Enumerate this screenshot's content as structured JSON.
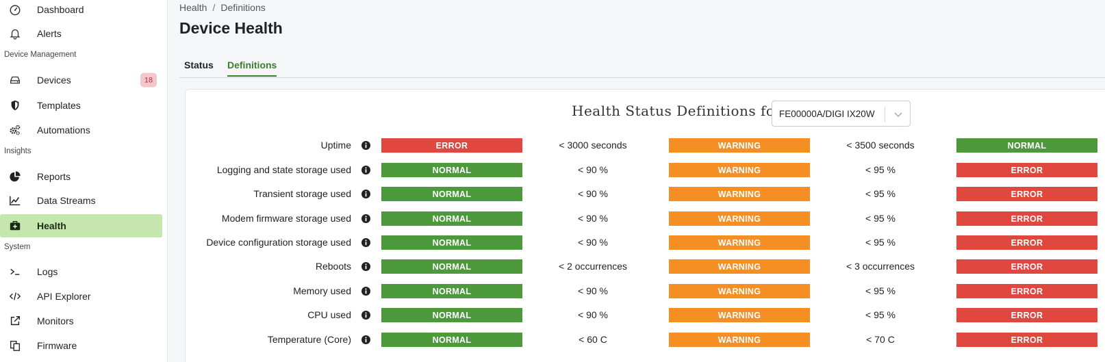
{
  "sidebar": {
    "items": [
      {
        "label": "Dashboard",
        "icon": "gauge-icon"
      },
      {
        "label": "Alerts",
        "icon": "bell-icon"
      },
      {
        "label": "Devices",
        "icon": "hard-drive-icon",
        "badge": "18"
      },
      {
        "label": "Templates",
        "icon": "shield-icon"
      },
      {
        "label": "Automations",
        "icon": "gears-icon"
      },
      {
        "label": "Reports",
        "icon": "pie-chart-icon"
      },
      {
        "label": "Data Streams",
        "icon": "line-chart-icon"
      },
      {
        "label": "Health",
        "icon": "medkit-icon",
        "active": true
      },
      {
        "label": "Logs",
        "icon": "terminal-icon"
      },
      {
        "label": "API Explorer",
        "icon": "code-icon"
      },
      {
        "label": "Monitors",
        "icon": "external-link-icon"
      },
      {
        "label": "Firmware",
        "icon": "copy-icon"
      }
    ],
    "sections": {
      "device_management": "Device Management",
      "insights": "Insights",
      "system": "System"
    }
  },
  "breadcrumb": {
    "parent": "Health",
    "separator": "/",
    "current": "Definitions"
  },
  "page_title": "Device Health",
  "tabs": [
    {
      "label": "Status",
      "active": false
    },
    {
      "label": "Definitions",
      "active": true
    }
  ],
  "definitions": {
    "title": "Health Status Definitions for",
    "device_select": {
      "value": "FE00000A/DIGI IX20W"
    },
    "rows": [
      {
        "label": "Uptime",
        "s1": "ERROR",
        "t1": "< 3000 seconds",
        "s2": "WARNING",
        "t2": "< 3500 seconds",
        "s3": "NORMAL"
      },
      {
        "label": "Logging and state storage used",
        "s1": "NORMAL",
        "t1": "< 90 %",
        "s2": "WARNING",
        "t2": "< 95 %",
        "s3": "ERROR"
      },
      {
        "label": "Transient storage used",
        "s1": "NORMAL",
        "t1": "< 90 %",
        "s2": "WARNING",
        "t2": "< 95 %",
        "s3": "ERROR"
      },
      {
        "label": "Modem firmware storage used",
        "s1": "NORMAL",
        "t1": "< 90 %",
        "s2": "WARNING",
        "t2": "< 95 %",
        "s3": "ERROR"
      },
      {
        "label": "Device configuration storage used",
        "s1": "NORMAL",
        "t1": "< 90 %",
        "s2": "WARNING",
        "t2": "< 95 %",
        "s3": "ERROR"
      },
      {
        "label": "Reboots",
        "s1": "NORMAL",
        "t1": "< 2 occurrences",
        "s2": "WARNING",
        "t2": "< 3 occurrences",
        "s3": "ERROR"
      },
      {
        "label": "Memory used",
        "s1": "NORMAL",
        "t1": "< 90 %",
        "s2": "WARNING",
        "t2": "< 95 %",
        "s3": "ERROR"
      },
      {
        "label": "CPU used",
        "s1": "NORMAL",
        "t1": "< 90 %",
        "s2": "WARNING",
        "t2": "< 95 %",
        "s3": "ERROR"
      },
      {
        "label": "Temperature (Core)",
        "s1": "NORMAL",
        "t1": "< 60 C",
        "s2": "WARNING",
        "t2": "< 70 C",
        "s3": "ERROR"
      }
    ]
  },
  "colors": {
    "error": "#e0473e",
    "warning": "#f58f23",
    "normal": "#4c9a3c",
    "accent": "#3a7d2a",
    "active_nav": "#c5e6ad"
  }
}
